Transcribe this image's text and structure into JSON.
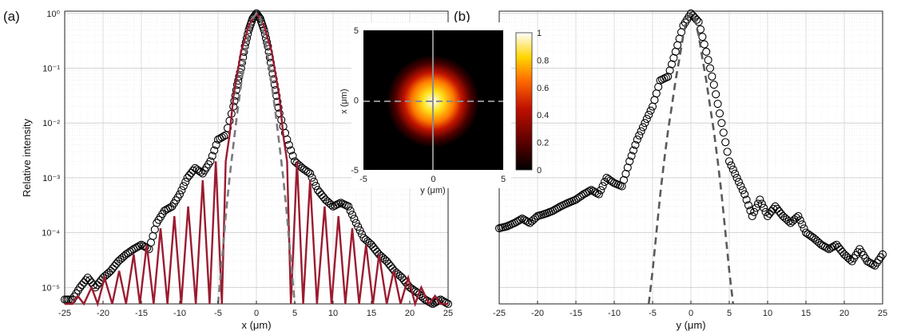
{
  "chart_data": [
    {
      "panel_label": "(a)",
      "type": "scatter",
      "y_scale": "log",
      "xlabel": "x (μm)",
      "ylabel": "Relative intensity",
      "xlim": [
        -25,
        25
      ],
      "ylim": [
        5e-06,
        1.1
      ],
      "x_ticks": [
        "-25",
        "-20",
        "-15",
        "-10",
        "-5",
        "0",
        "5",
        "10",
        "15",
        "20",
        "25"
      ],
      "y_ticks": [
        "10⁻⁵",
        "10⁻⁴",
        "10⁻³",
        "10⁻²",
        "10⁻¹",
        "10⁰"
      ],
      "grid": true,
      "series": [
        {
          "kind": "markers",
          "color": "#000000",
          "x": [
            -25,
            -24,
            -23,
            -22,
            -21,
            -20,
            -19,
            -18,
            -17,
            -16,
            -15,
            -14,
            -13,
            -12,
            -11,
            -10,
            -9,
            -8,
            -7,
            -6,
            -5,
            -4,
            -3,
            -2.5,
            -2,
            -1.5,
            -1,
            -0.5,
            0,
            0.5,
            1,
            1.5,
            2,
            2.5,
            3,
            4,
            5,
            6,
            7,
            8,
            9,
            10,
            11,
            12,
            13,
            14,
            15,
            16,
            17,
            18,
            19,
            20,
            21,
            22,
            23,
            24,
            25
          ],
          "y": [
            6e-06,
            6e-06,
            1e-05,
            1.5e-05,
            1e-05,
            1.5e-05,
            2e-05,
            3e-05,
            4e-05,
            5e-05,
            6e-05,
            5e-05,
            0.00015,
            0.00025,
            0.0003,
            0.0005,
            0.001,
            0.0015,
            0.0012,
            0.002,
            0.005,
            0.006,
            0.02,
            0.05,
            0.1,
            0.25,
            0.5,
            0.8,
            1,
            0.8,
            0.5,
            0.25,
            0.1,
            0.04,
            0.015,
            0.005,
            0.002,
            0.0015,
            0.0012,
            0.0006,
            0.0004,
            0.0003,
            0.00035,
            0.0003,
            0.00015,
            8e-05,
            6e-05,
            4e-05,
            3e-05,
            2e-05,
            1.5e-05,
            1e-05,
            8e-06,
            6e-06,
            5e-06,
            6e-06,
            5e-06
          ]
        },
        {
          "kind": "line",
          "color": "#9b1b30",
          "x": [
            -25,
            -24,
            -23.3,
            -22.5,
            -21.5,
            -20.7,
            -19.8,
            -18.8,
            -17.9,
            -17,
            -16,
            -15.2,
            -14.3,
            -13.4,
            -12.5,
            -11.6,
            -10.7,
            -9.8,
            -8.9,
            -7.9,
            -7,
            -6.1,
            -5.3,
            -4.5,
            -4,
            -3.5,
            -3,
            -2,
            -1,
            0,
            1,
            2,
            3,
            3.5,
            4,
            4.5,
            5.3,
            6.1,
            7,
            7.9,
            8.9,
            9.8,
            10.7,
            11.6,
            12.5,
            13.4,
            14.3,
            15.2,
            16,
            17,
            17.9,
            18.8,
            19.8,
            20.7,
            21.5,
            22.5,
            23.3,
            24,
            25
          ],
          "y": [
            5e-06,
            5e-06,
            7e-06,
            5e-06,
            1e-05,
            5e-06,
            1.5e-05,
            5e-06,
            2e-05,
            5e-06,
            4e-05,
            5e-06,
            6e-05,
            5e-06,
            0.00012,
            5e-06,
            0.0002,
            5e-06,
            0.0003,
            5e-06,
            0.0009,
            5e-06,
            0.002,
            5e-06,
            0.002,
            0.006,
            0.03,
            0.2,
            0.6,
            1,
            0.6,
            0.2,
            0.03,
            0.006,
            0.002,
            5e-06,
            0.002,
            5e-06,
            0.0009,
            5e-06,
            0.0003,
            5e-06,
            0.0002,
            5e-06,
            0.00012,
            5e-06,
            6e-05,
            5e-06,
            4e-05,
            5e-06,
            2e-05,
            5e-06,
            1.5e-05,
            5e-06,
            1e-05,
            5e-06,
            7e-06,
            5e-06,
            5e-06
          ]
        },
        {
          "kind": "dashed",
          "color": "#7a7a7a",
          "x": [
            -5,
            -4.5,
            -4,
            -3.5,
            -3,
            -2.5,
            -2,
            -1.5,
            -1,
            -0.5,
            0,
            0.5,
            1,
            1.5,
            2,
            2.5,
            3,
            3.5,
            4,
            4.5,
            5
          ],
          "y": [
            5e-06,
            3e-05,
            0.0002,
            0.001,
            0.004,
            0.015,
            0.05,
            0.15,
            0.4,
            0.8,
            1,
            0.8,
            0.4,
            0.15,
            0.05,
            0.015,
            0.004,
            0.001,
            0.0002,
            3e-05,
            5e-06
          ]
        }
      ]
    },
    {
      "panel_label": "(b)",
      "type": "scatter",
      "y_scale": "log",
      "xlabel": "y (μm)",
      "xlim": [
        -25,
        25
      ],
      "ylim": [
        5e-06,
        1.1
      ],
      "x_ticks": [
        "-25",
        "-20",
        "-15",
        "-10",
        "-5",
        "0",
        "5",
        "10",
        "15",
        "20",
        "25"
      ],
      "grid": true,
      "series": [
        {
          "kind": "markers",
          "color": "#000000",
          "x": [
            -25,
            -24,
            -23,
            -22,
            -21,
            -20,
            -19,
            -18,
            -17,
            -16,
            -15,
            -14,
            -13,
            -12,
            -11,
            -10,
            -9,
            -8,
            -7,
            -6,
            -5,
            -4,
            -3,
            -2,
            -1,
            0,
            1,
            2,
            3,
            4,
            5,
            6,
            7,
            8,
            9,
            10,
            11,
            12,
            13,
            14,
            15,
            16,
            17,
            18,
            19,
            20,
            21,
            22,
            23,
            24,
            25
          ],
          "y": [
            0.00012,
            0.00013,
            0.00015,
            0.00018,
            0.00015,
            0.0002,
            0.00022,
            0.00025,
            0.0003,
            0.00035,
            0.0004,
            0.0005,
            0.0006,
            0.0005,
            0.001,
            0.0008,
            0.0007,
            0.002,
            0.005,
            0.01,
            0.02,
            0.06,
            0.07,
            0.2,
            0.6,
            1,
            0.7,
            0.2,
            0.05,
            0.01,
            0.002,
            0.001,
            0.0005,
            0.0002,
            0.0004,
            0.0002,
            0.0003,
            0.0002,
            0.00015,
            0.0002,
            0.0001,
            8e-05,
            6e-05,
            5e-05,
            6e-05,
            4e-05,
            3e-05,
            5e-05,
            3e-05,
            2.5e-05,
            4e-05
          ]
        },
        {
          "kind": "dashed",
          "color": "#5a5a5a",
          "x": [
            -5.5,
            -5,
            -4.5,
            -4,
            -3.5,
            -3,
            -2.5,
            -2,
            -1.5,
            -1,
            -0.5,
            0,
            0.5,
            1,
            1.5,
            2,
            2.5,
            3,
            3.5,
            4,
            4.5,
            5,
            5.5
          ],
          "y": [
            5e-06,
            2e-05,
            0.0001,
            0.0005,
            0.002,
            0.007,
            0.02,
            0.06,
            0.15,
            0.4,
            0.8,
            1,
            0.8,
            0.4,
            0.15,
            0.06,
            0.02,
            0.007,
            0.002,
            0.0005,
            0.0001,
            2e-05,
            5e-06
          ]
        }
      ]
    },
    {
      "type": "heatmap",
      "xlabel": "y (μm)",
      "ylabel": "x (μm)",
      "xlim": [
        -5,
        5
      ],
      "ylim": [
        -5,
        5
      ],
      "x_ticks": [
        "-5",
        "0",
        "5"
      ],
      "y_ticks": [
        "-5",
        "0",
        "5"
      ],
      "colorbar_range": [
        0,
        1
      ],
      "colorbar_ticks": [
        "0",
        "0.2",
        "0.4",
        "0.6",
        "0.8",
        "1"
      ],
      "colormap": [
        "#000000",
        "#5a0000",
        "#c01000",
        "#ff6a00",
        "#ffd500",
        "#ffffff"
      ]
    }
  ]
}
